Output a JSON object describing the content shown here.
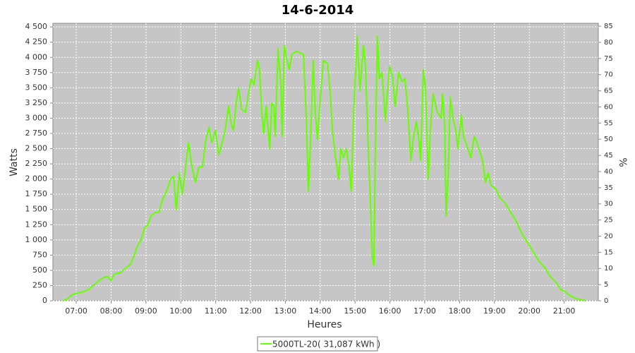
{
  "chart_data": {
    "type": "line",
    "title": "14-6-2014",
    "xlabel": "Heures",
    "ylabel": "Watts",
    "y2label": "%",
    "xlim": [
      6.33,
      21.98
    ],
    "xticks": [
      {
        "value": 7,
        "label": "07:00"
      },
      {
        "value": 8,
        "label": "08:00"
      },
      {
        "value": 9,
        "label": "09:00"
      },
      {
        "value": 10,
        "label": "10:00"
      },
      {
        "value": 11,
        "label": "11:00"
      },
      {
        "value": 12,
        "label": "12:00"
      },
      {
        "value": 13,
        "label": "13:00"
      },
      {
        "value": 14,
        "label": "14:00"
      },
      {
        "value": 15,
        "label": "15:00"
      },
      {
        "value": 16,
        "label": "16:00"
      },
      {
        "value": 17,
        "label": "17:00"
      },
      {
        "value": 18,
        "label": "18:00"
      },
      {
        "value": 19,
        "label": "19:00"
      },
      {
        "value": 20,
        "label": "20:00"
      },
      {
        "value": 21,
        "label": "21:00"
      }
    ],
    "ylim": [
      0,
      4560
    ],
    "yticks": [
      0,
      250,
      500,
      750,
      {
        "value": 1000,
        "label": "1 000"
      },
      {
        "value": 1250,
        "label": "1 250"
      },
      {
        "value": 1500,
        "label": "1 500"
      },
      {
        "value": 1750,
        "label": "1 750"
      },
      {
        "value": 2000,
        "label": "2 000"
      },
      {
        "value": 2250,
        "label": "2 250"
      },
      {
        "value": 2500,
        "label": "2 500"
      },
      {
        "value": 2750,
        "label": "2 750"
      },
      {
        "value": 3000,
        "label": "3 000"
      },
      {
        "value": 3250,
        "label": "3 250"
      },
      {
        "value": 3500,
        "label": "3 500"
      },
      {
        "value": 3750,
        "label": "3 750"
      },
      {
        "value": 4000,
        "label": "4 000"
      },
      {
        "value": 4250,
        "label": "4 250"
      },
      {
        "value": 4500,
        "label": "4 500"
      }
    ],
    "y2lim": [
      0,
      85.9
    ],
    "y2ticks": [
      0,
      5,
      10,
      15,
      20,
      25,
      30,
      35,
      40,
      45,
      50,
      55,
      60,
      65,
      70,
      75,
      80,
      85
    ],
    "grid": true,
    "legend": "bottom",
    "x": [
      6.6,
      6.74,
      6.88,
      7.04,
      7.2,
      7.34,
      7.49,
      7.65,
      7.81,
      7.91,
      7.99,
      8.09,
      8.26,
      8.42,
      8.56,
      8.66,
      8.76,
      8.86,
      8.96,
      9.06,
      9.15,
      9.27,
      9.37,
      9.47,
      9.59,
      9.71,
      9.79,
      9.87,
      9.96,
      10.04,
      10.12,
      10.22,
      10.32,
      10.42,
      10.52,
      10.62,
      10.72,
      10.81,
      10.89,
      10.99,
      11.09,
      11.19,
      11.27,
      11.37,
      11.45,
      11.51,
      11.6,
      11.66,
      11.74,
      11.86,
      11.94,
      12.02,
      12.1,
      12.2,
      12.26,
      12.32,
      12.38,
      12.45,
      12.51,
      12.55,
      12.61,
      12.67,
      12.71,
      12.79,
      12.87,
      12.91,
      12.97,
      13.03,
      13.11,
      13.19,
      13.32,
      13.52,
      13.6,
      13.66,
      13.72,
      13.8,
      13.86,
      13.92,
      14.0,
      14.09,
      14.21,
      14.29,
      14.35,
      14.43,
      14.53,
      14.59,
      14.67,
      14.75,
      14.83,
      14.89,
      14.96,
      15.06,
      15.14,
      15.24,
      15.3,
      15.36,
      15.42,
      15.5,
      15.54,
      15.58,
      15.64,
      15.7,
      15.77,
      15.83,
      15.87,
      15.93,
      15.99,
      16.07,
      16.15,
      16.25,
      16.35,
      16.43,
      16.51,
      16.6,
      16.68,
      16.76,
      16.84,
      16.88,
      16.96,
      17.02,
      17.1,
      17.16,
      17.24,
      17.36,
      17.47,
      17.51,
      17.57,
      17.61,
      17.67,
      17.73,
      17.81,
      17.89,
      17.95,
      18.05,
      18.11,
      18.21,
      18.32,
      18.42,
      18.5,
      18.58,
      18.66,
      18.74,
      18.82,
      18.9,
      19.02,
      19.15,
      19.31,
      19.47,
      19.63,
      19.79,
      19.96,
      20.12,
      20.28,
      20.44,
      20.6,
      20.77,
      20.91,
      21.01,
      21.13,
      21.25,
      21.37,
      21.49,
      21.62
    ],
    "series": [
      {
        "name": "5000TL-20( 31,087 kWh )",
        "color": "#66ff00",
        "values": [
          0,
          30,
          100,
          130,
          150,
          180,
          250,
          330,
          390,
          400,
          330,
          440,
          460,
          540,
          600,
          750,
          900,
          1000,
          1200,
          1250,
          1400,
          1450,
          1450,
          1650,
          1800,
          2000,
          2050,
          1500,
          2100,
          1750,
          2100,
          2600,
          2200,
          1950,
          2200,
          2200,
          2650,
          2850,
          2600,
          2800,
          2400,
          2600,
          2800,
          3200,
          2900,
          2800,
          3300,
          3500,
          3150,
          3100,
          3400,
          3650,
          3550,
          3950,
          3800,
          3100,
          2750,
          3200,
          2800,
          2500,
          3250,
          3200,
          2700,
          4150,
          3600,
          2700,
          4200,
          4000,
          3800,
          4050,
          4100,
          4050,
          3000,
          1800,
          2600,
          3950,
          3100,
          2650,
          3300,
          3950,
          3900,
          3400,
          2800,
          2400,
          2000,
          2500,
          2350,
          2500,
          2200,
          1800,
          3100,
          4350,
          3450,
          4200,
          3850,
          2800,
          1900,
          700,
          580,
          2400,
          4350,
          3650,
          3750,
          3300,
          2950,
          3450,
          3850,
          3700,
          3200,
          3750,
          3600,
          3650,
          3150,
          2300,
          2700,
          2950,
          2600,
          2300,
          3800,
          3500,
          2000,
          2800,
          3400,
          3100,
          3000,
          3400,
          2900,
          1400,
          2000,
          3350,
          3000,
          2800,
          2500,
          3050,
          2700,
          2550,
          2350,
          2700,
          2600,
          2450,
          2300,
          1950,
          2100,
          1900,
          1850,
          1700,
          1600,
          1450,
          1300,
          1100,
          950,
          800,
          650,
          550,
          400,
          300,
          180,
          160,
          100,
          60,
          30,
          20,
          0
        ]
      }
    ]
  }
}
